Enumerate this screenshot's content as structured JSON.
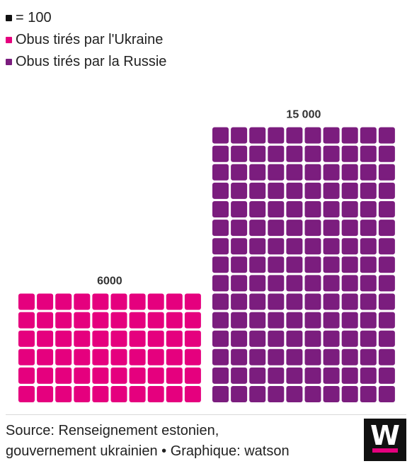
{
  "legend": {
    "unit_label": "= 100",
    "items": [
      {
        "label": "Obus tirés par l'Ukraine",
        "color": "#e5007e"
      },
      {
        "label": "Obus tirés par la Russie",
        "color": "#7b1d7e"
      }
    ],
    "unit_color": "#111111"
  },
  "chart_data": {
    "type": "waffle",
    "unit": 100,
    "categories": [
      "Obus tirés par l'Ukraine",
      "Obus tirés par la Russie"
    ],
    "values": [
      6000,
      15000
    ],
    "data_labels": [
      "6000",
      "15 000"
    ],
    "colors": [
      "#e5007e",
      "#7b1d7e"
    ],
    "columns_per_block": 10
  },
  "footer": {
    "source_line1": "Source: Renseignement estonien,",
    "source_line2": "gouvernement ukrainien • Graphique: watson",
    "logo_letter": "W"
  }
}
